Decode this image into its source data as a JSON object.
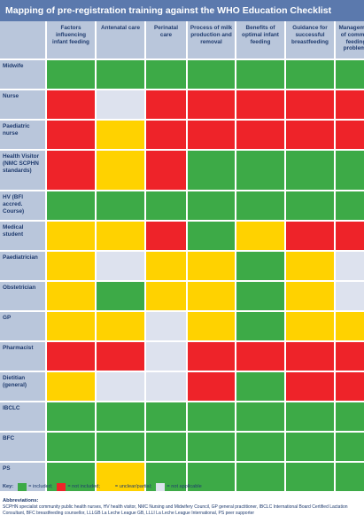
{
  "title": "Mapping of pre-registration training against the WHO Education Checklist",
  "columns": [
    "Factors influencing infant feeding",
    "Antenatal care",
    "Perinatal care",
    "Process of milk production and removal",
    "Benefits of optimal infant feeding",
    "Guidance for successful breastfeeding",
    "Management of common feeding problems"
  ],
  "rows": [
    {
      "label": "Midwife",
      "status": [
        "g",
        "g",
        "g",
        "g",
        "g",
        "g",
        "g"
      ]
    },
    {
      "label": "Nurse",
      "status": [
        "r",
        "n",
        "r",
        "r",
        "r",
        "r",
        "r"
      ]
    },
    {
      "label": "Paediatric nurse",
      "status": [
        "r",
        "y",
        "r",
        "r",
        "r",
        "r",
        "r"
      ]
    },
    {
      "label": "Health Visitor (NMC SCPHN standards)",
      "status": [
        "r",
        "y",
        "r",
        "g",
        "g",
        "g",
        "g"
      ]
    },
    {
      "label": "HV (BFI accred. Course)",
      "status": [
        "g",
        "g",
        "g",
        "g",
        "g",
        "g",
        "g"
      ]
    },
    {
      "label": "Medical student",
      "status": [
        "y",
        "y",
        "r",
        "g",
        "y",
        "r",
        "r"
      ]
    },
    {
      "label": "Paediatrician",
      "status": [
        "y",
        "n",
        "y",
        "y",
        "g",
        "y",
        "n"
      ]
    },
    {
      "label": "Obstetrician",
      "status": [
        "y",
        "g",
        "y",
        "y",
        "g",
        "y",
        "n"
      ]
    },
    {
      "label": "GP",
      "status": [
        "y",
        "y",
        "n",
        "y",
        "g",
        "y",
        "y"
      ]
    },
    {
      "label": "Pharmacist",
      "status": [
        "r",
        "r",
        "n",
        "r",
        "r",
        "r",
        "r"
      ]
    },
    {
      "label": "Dietitian (general)",
      "status": [
        "y",
        "n",
        "n",
        "r",
        "g",
        "r",
        "r"
      ]
    },
    {
      "label": "IBCLC",
      "status": [
        "g",
        "g",
        "g",
        "g",
        "g",
        "g",
        "g"
      ]
    },
    {
      "label": "BFC",
      "status": [
        "g",
        "g",
        "g",
        "g",
        "g",
        "g",
        "g"
      ]
    },
    {
      "label": "PS",
      "status": [
        "g",
        "y",
        "g",
        "g",
        "g",
        "g",
        "g"
      ]
    }
  ],
  "colors": {
    "g": "#3daa47",
    "r": "#ee2329",
    "y": "#ffd200",
    "n": "#dde2ee"
  },
  "key": {
    "title": "Key:",
    "included": "= included;",
    "not_included": "= not included;",
    "unclear": "= unclear/partial;",
    "not_applicable": "= not applicable"
  },
  "abbreviations": {
    "title": "Abbreviations:",
    "text": "SCPHN specialist community public health nurses, HV health visitor, NMC Nursing and Midwifery Council, GP general practitioner, IBCLC International Board Certified Lactation Consultant, BFC breastfeeding counsellor, LLLGB La Leche League GB, LLLI La Leche League International, PS peer supporter"
  }
}
